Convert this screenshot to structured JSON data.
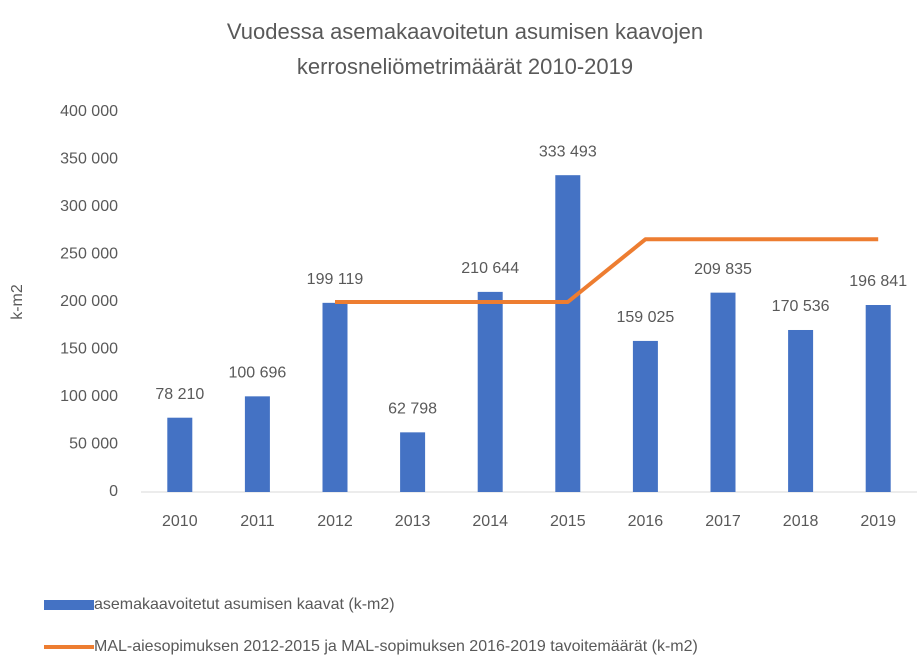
{
  "chart_data": {
    "type": "bar",
    "title": [
      "Vuodessa asemakaavoitetun asumisen kaavojen",
      "kerrosneliömetrimäärät 2010-2019"
    ],
    "y_label": "k-m2",
    "categories": [
      "2010",
      "2011",
      "2012",
      "2013",
      "2014",
      "2015",
      "2016",
      "2017",
      "2018",
      "2019"
    ],
    "series": [
      {
        "name": "asemakaavoitetut asumisen kaavat (k-m2)",
        "type": "bar",
        "color": "#4472c4",
        "values": [
          78210,
          100696,
          199119,
          62798,
          210644,
          333493,
          159025,
          209835,
          170536,
          196841
        ],
        "value_labels": [
          "78 210",
          "100 696",
          "199 119",
          "62 798",
          "210 644",
          "333 493",
          "159 025",
          "209 835",
          "170 536",
          "196 841"
        ]
      },
      {
        "name": "MAL-aiesopimuksen 2012-2015 ja MAL-sopimuksen 2016-2019 tavoitemäärät (k-m2)",
        "type": "line",
        "color": "#ed7d31",
        "values": [
          null,
          null,
          200000,
          200000,
          200000,
          200000,
          266000,
          266000,
          266000,
          266000
        ]
      }
    ],
    "ylim": [
      0,
      400000
    ],
    "yticks": [
      {
        "value": 0,
        "label": "0"
      },
      {
        "value": 50000,
        "label": "50 000"
      },
      {
        "value": 100000,
        "label": "100 000"
      },
      {
        "value": 150000,
        "label": "150 000"
      },
      {
        "value": 200000,
        "label": "200 000"
      },
      {
        "value": 250000,
        "label": "250 000"
      },
      {
        "value": 300000,
        "label": "300 000"
      },
      {
        "value": 350000,
        "label": "350 000"
      },
      {
        "value": 400000,
        "label": "400 000"
      }
    ],
    "grid": false,
    "legend": "bottom"
  }
}
